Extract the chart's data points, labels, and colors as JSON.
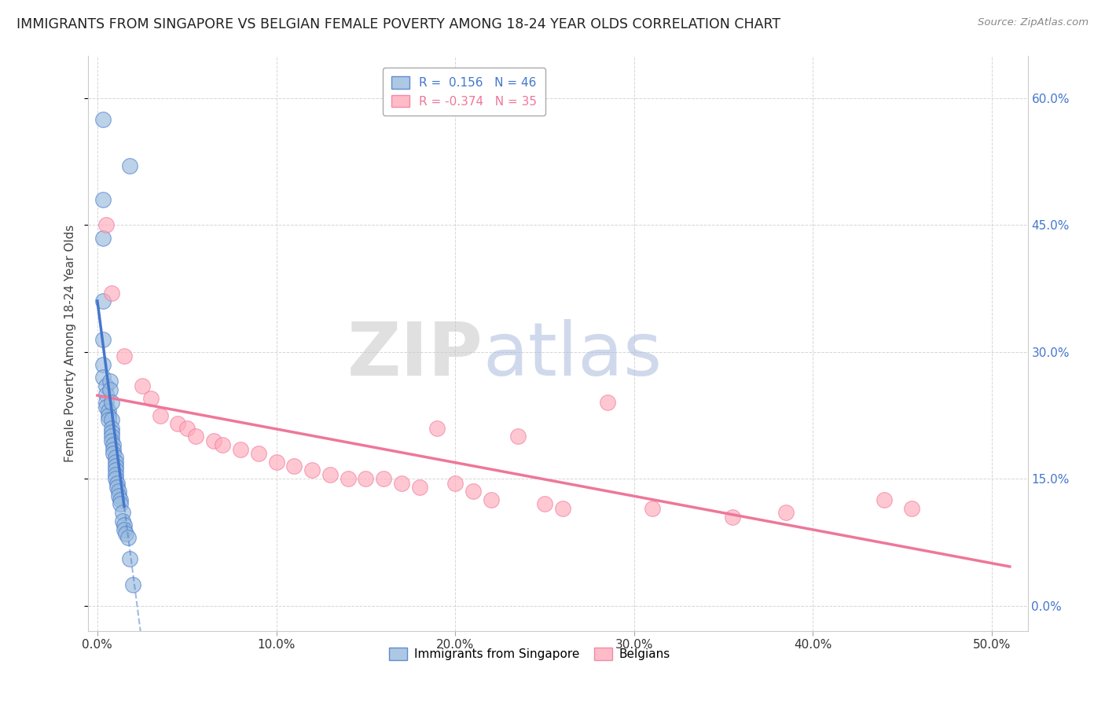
{
  "title": "IMMIGRANTS FROM SINGAPORE VS BELGIAN FEMALE POVERTY AMONG 18-24 YEAR OLDS CORRELATION CHART",
  "source": "Source: ZipAtlas.com",
  "ylabel": "Female Poverty Among 18-24 Year Olds",
  "R_blue": 0.156,
  "N_blue": 46,
  "R_pink": -0.374,
  "N_pink": 35,
  "blue_color": "#99BBDD",
  "pink_color": "#FFAABB",
  "blue_line_color": "#4477CC",
  "pink_line_color": "#EE7799",
  "blue_scatter": [
    [
      0.3,
      57.5
    ],
    [
      1.8,
      52.0
    ],
    [
      0.3,
      48.0
    ],
    [
      0.3,
      43.5
    ],
    [
      0.3,
      36.0
    ],
    [
      0.3,
      31.5
    ],
    [
      0.3,
      28.5
    ],
    [
      0.3,
      27.0
    ],
    [
      0.5,
      26.0
    ],
    [
      0.5,
      25.0
    ],
    [
      0.5,
      24.0
    ],
    [
      0.5,
      23.5
    ],
    [
      0.6,
      23.0
    ],
    [
      0.6,
      22.5
    ],
    [
      0.6,
      22.0
    ],
    [
      0.7,
      26.5
    ],
    [
      0.7,
      25.5
    ],
    [
      0.8,
      24.0
    ],
    [
      0.8,
      22.0
    ],
    [
      0.8,
      21.0
    ],
    [
      0.8,
      20.5
    ],
    [
      0.8,
      20.0
    ],
    [
      0.8,
      19.5
    ],
    [
      0.9,
      19.0
    ],
    [
      0.9,
      18.5
    ],
    [
      0.9,
      18.0
    ],
    [
      1.0,
      17.5
    ],
    [
      1.0,
      17.0
    ],
    [
      1.0,
      16.5
    ],
    [
      1.0,
      16.0
    ],
    [
      1.0,
      15.5
    ],
    [
      1.0,
      15.0
    ],
    [
      1.1,
      14.5
    ],
    [
      1.1,
      14.0
    ],
    [
      1.2,
      13.5
    ],
    [
      1.2,
      13.0
    ],
    [
      1.3,
      12.5
    ],
    [
      1.3,
      12.0
    ],
    [
      1.4,
      11.0
    ],
    [
      1.4,
      10.0
    ],
    [
      1.5,
      9.5
    ],
    [
      1.5,
      9.0
    ],
    [
      1.6,
      8.5
    ],
    [
      1.7,
      8.0
    ],
    [
      1.8,
      5.5
    ],
    [
      2.0,
      2.5
    ]
  ],
  "pink_scatter": [
    [
      0.5,
      45.0
    ],
    [
      0.8,
      37.0
    ],
    [
      1.5,
      29.5
    ],
    [
      2.5,
      26.0
    ],
    [
      3.0,
      24.5
    ],
    [
      3.5,
      22.5
    ],
    [
      4.5,
      21.5
    ],
    [
      5.0,
      21.0
    ],
    [
      5.5,
      20.0
    ],
    [
      6.5,
      19.5
    ],
    [
      7.0,
      19.0
    ],
    [
      8.0,
      18.5
    ],
    [
      9.0,
      18.0
    ],
    [
      10.0,
      17.0
    ],
    [
      11.0,
      16.5
    ],
    [
      12.0,
      16.0
    ],
    [
      13.0,
      15.5
    ],
    [
      14.0,
      15.0
    ],
    [
      15.0,
      15.0
    ],
    [
      16.0,
      15.0
    ],
    [
      17.0,
      14.5
    ],
    [
      18.0,
      14.0
    ],
    [
      19.0,
      21.0
    ],
    [
      20.0,
      14.5
    ],
    [
      21.0,
      13.5
    ],
    [
      22.0,
      12.5
    ],
    [
      23.5,
      20.0
    ],
    [
      25.0,
      12.0
    ],
    [
      26.0,
      11.5
    ],
    [
      28.5,
      24.0
    ],
    [
      31.0,
      11.5
    ],
    [
      35.5,
      10.5
    ],
    [
      38.5,
      11.0
    ],
    [
      44.0,
      12.5
    ],
    [
      45.5,
      11.5
    ]
  ],
  "xlim": [
    -0.5,
    52.0
  ],
  "ylim": [
    -3.0,
    65.0
  ],
  "xticks": [
    0,
    10,
    20,
    30,
    40,
    50
  ],
  "yticks": [
    0,
    15,
    30,
    45,
    60
  ]
}
